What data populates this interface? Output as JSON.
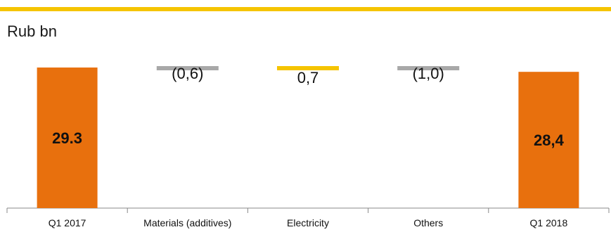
{
  "unit_label": "Rub bn",
  "colors": {
    "accent_rule": "#f5c400",
    "total_bar": "#e8700d",
    "decrease": "#a8a8a8",
    "increase": "#f5c400",
    "axis": "#888888"
  },
  "chart_data": {
    "type": "bar",
    "subtype": "waterfall",
    "categories": [
      "Q1 2017",
      "Materials (additives)",
      "Electricity",
      "Others",
      "Q1 2018"
    ],
    "values": [
      29.3,
      -0.6,
      0.7,
      -1.0,
      28.4
    ],
    "kinds": [
      "total",
      "delta",
      "delta",
      "delta",
      "total"
    ],
    "labels": [
      "29.3",
      "(0,6)",
      "0,7",
      "(1,0)",
      "28,4"
    ],
    "title": "",
    "xlabel": "",
    "ylabel": "Rub bn",
    "ylim": [
      0,
      29.6
    ]
  }
}
